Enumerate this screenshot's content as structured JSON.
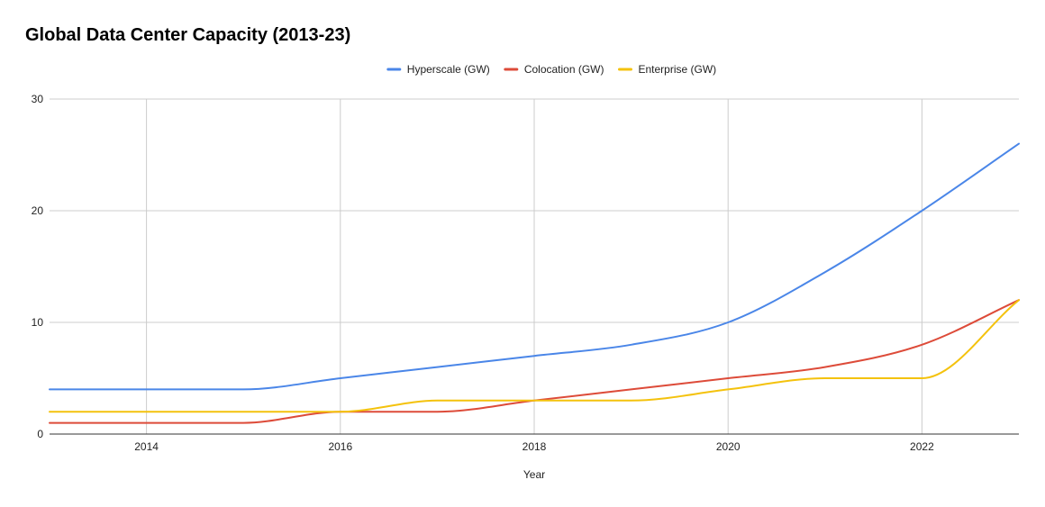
{
  "chart_data": {
    "type": "line",
    "title": "Global Data Center Capacity (2013-23)",
    "xlabel": "Year",
    "ylabel": "",
    "x": [
      2013,
      2014,
      2015,
      2016,
      2017,
      2018,
      2019,
      2020,
      2021,
      2022,
      2023
    ],
    "xlim": [
      2013,
      2023
    ],
    "ylim": [
      0,
      30
    ],
    "x_ticks": [
      "2014",
      "2016",
      "2018",
      "2020",
      "2022"
    ],
    "y_ticks": [
      "0",
      "10",
      "20",
      "30"
    ],
    "grid": true,
    "legend_position": "top-center",
    "series": [
      {
        "name": "Hyperscale (GW)",
        "color": "#4a86e8",
        "values": [
          4,
          4,
          4,
          5,
          6,
          7,
          8,
          10,
          14.5,
          20,
          26
        ]
      },
      {
        "name": "Colocation (GW)",
        "color": "#dd4b39",
        "values": [
          1,
          1,
          1,
          2,
          2,
          3,
          4,
          5,
          6,
          8,
          12
        ]
      },
      {
        "name": "Enterprise (GW)",
        "color": "#f4c20d",
        "values": [
          2,
          2,
          2,
          2,
          3,
          3,
          3,
          4,
          5,
          5,
          12
        ]
      }
    ]
  }
}
